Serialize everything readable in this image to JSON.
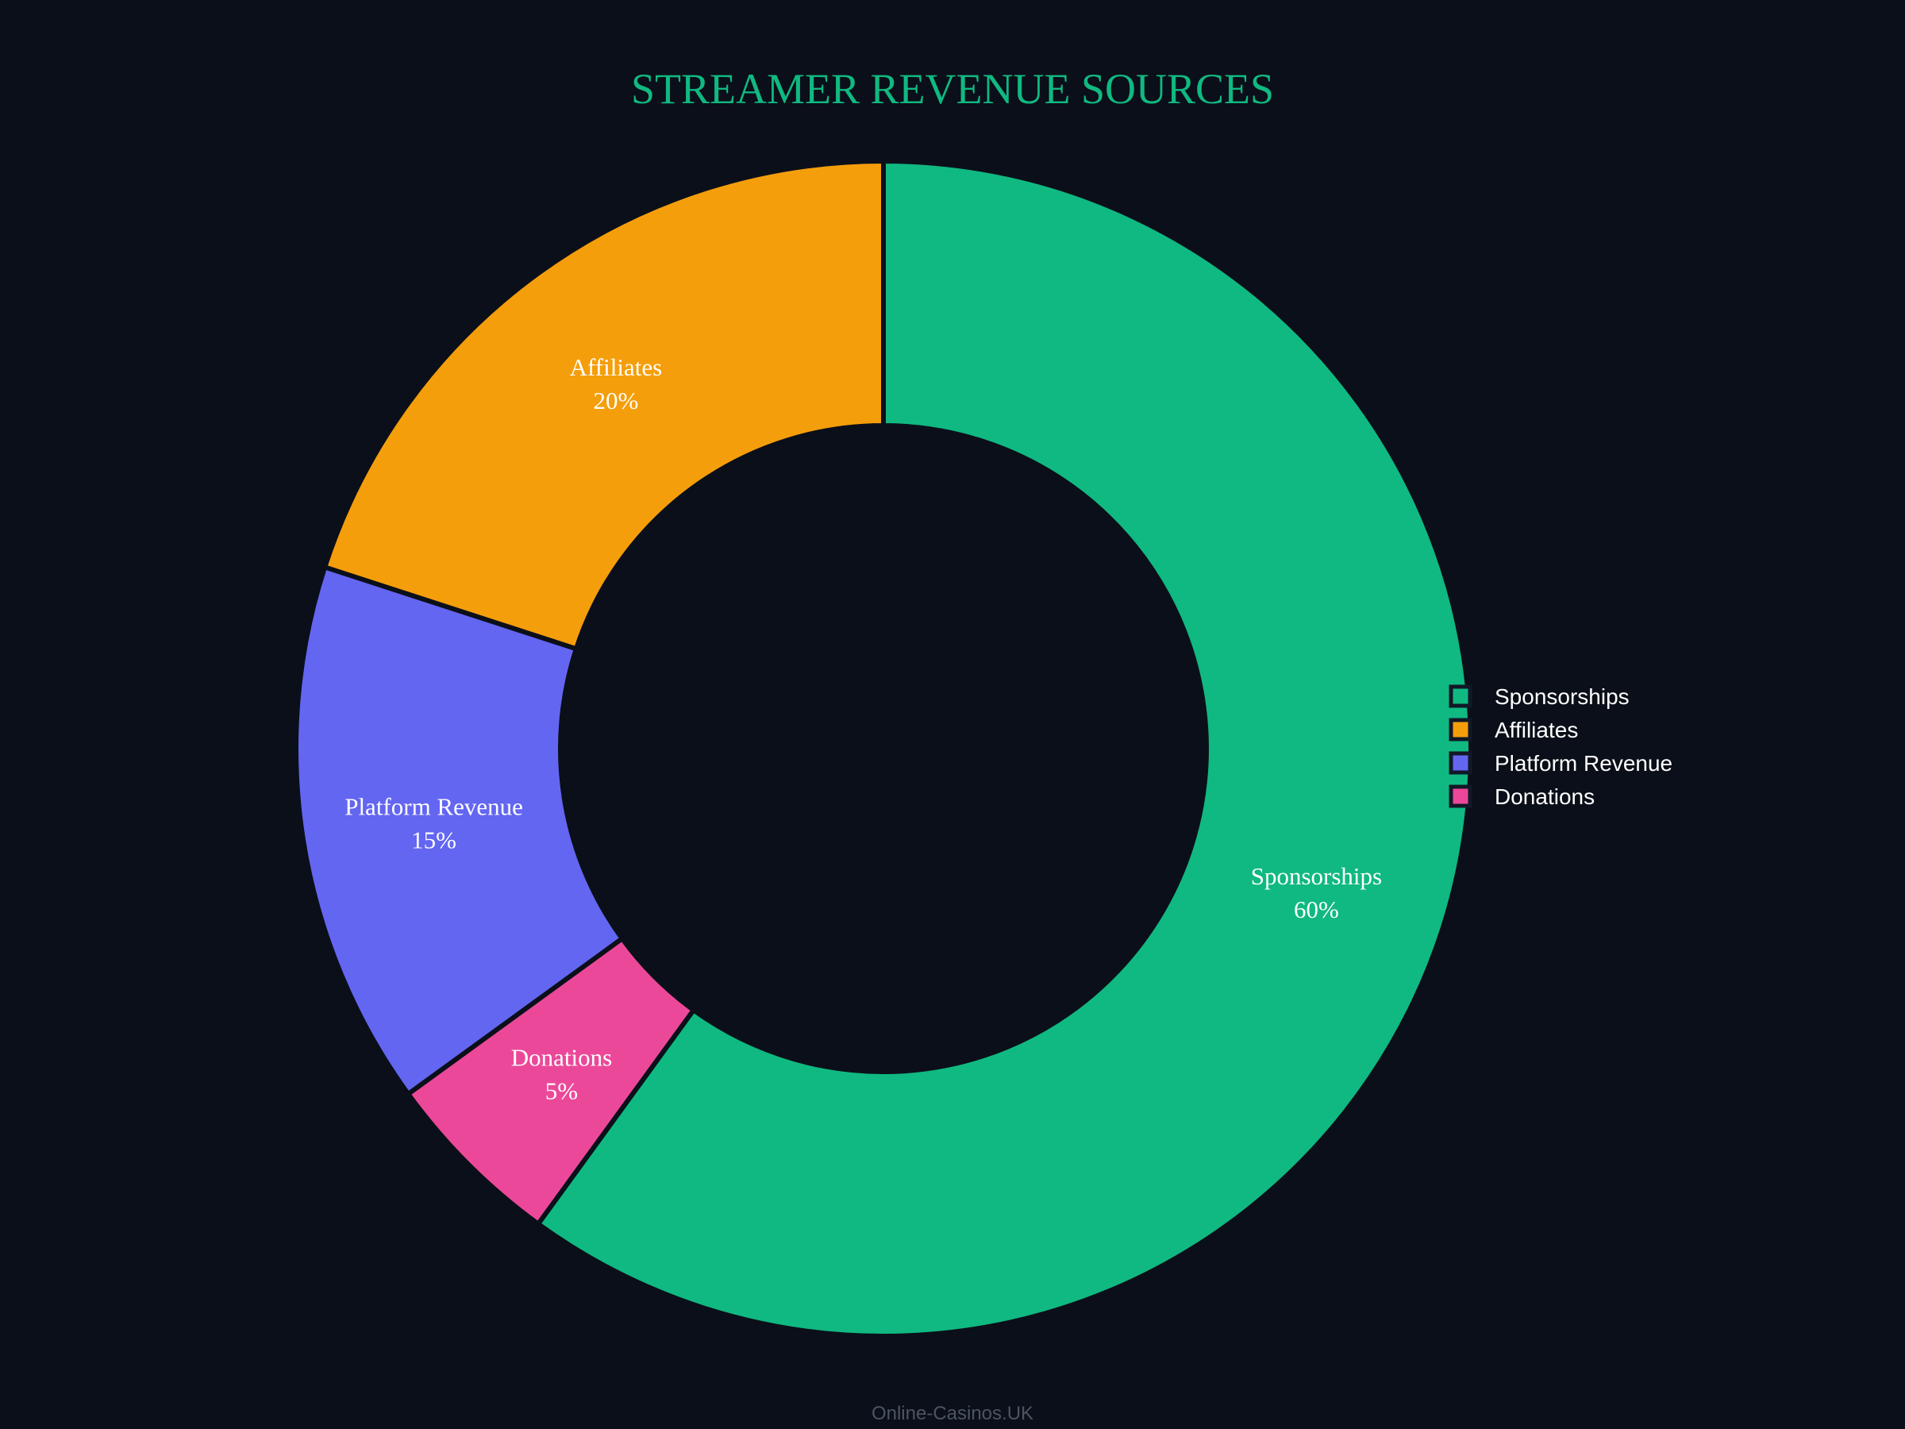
{
  "chart_data": {
    "type": "pie",
    "hole": 0.55,
    "title": "STREAMER REVENUE SOURCES",
    "slices": [
      {
        "label": "Sponsorships",
        "value": 60,
        "display": "60%",
        "color": "#10b981"
      },
      {
        "label": "Donations",
        "value": 5,
        "display": "5%",
        "color": "#ec4899"
      },
      {
        "label": "Platform Revenue",
        "value": 15,
        "display": "15%",
        "color": "#6366f1"
      },
      {
        "label": "Affiliates",
        "value": 20,
        "display": "20%",
        "color": "#f59e0b"
      }
    ],
    "legend": {
      "placement": "right",
      "entries": [
        {
          "label": "Sponsorships",
          "color": "#10b981"
        },
        {
          "label": "Affiliates",
          "color": "#f59e0b"
        },
        {
          "label": "Platform Revenue",
          "color": "#6366f1"
        },
        {
          "label": "Donations",
          "color": "#ec4899"
        }
      ]
    },
    "footer": "Online-Casinos.UK"
  },
  "colors": {
    "background": "#0b0f19",
    "slice_border": "#0b0f19",
    "title": "#10b981",
    "footer": "#4b5563"
  }
}
